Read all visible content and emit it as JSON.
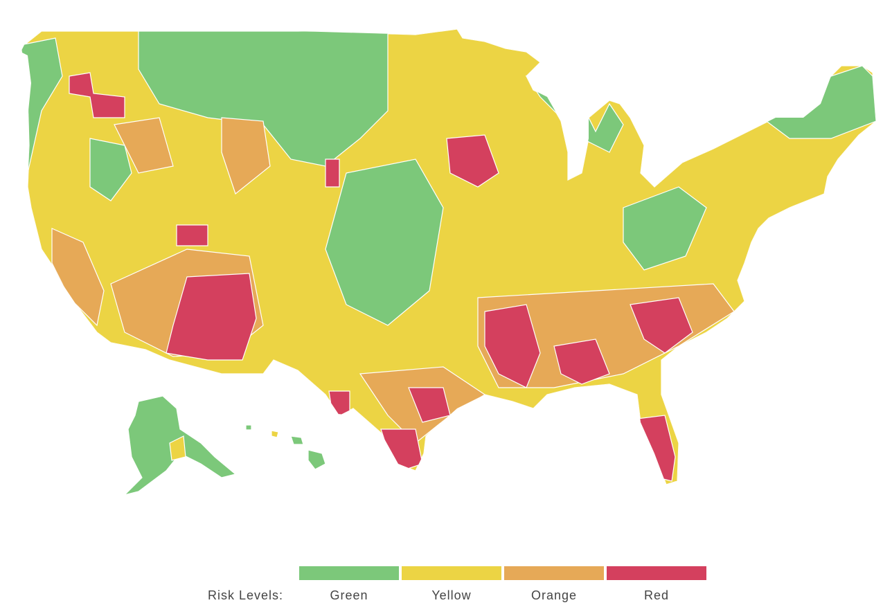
{
  "map": {
    "colors": {
      "green": "#7cc87a",
      "yellow": "#ecd444",
      "orange": "#e6a957",
      "red": "#d4405e",
      "border": "#ffffff"
    },
    "regions": {
      "contiguous_us": "yellow",
      "alaska": "green",
      "hawaii": "green"
    }
  },
  "legend": {
    "title": "Risk Levels:",
    "items": [
      {
        "key": "green",
        "label": "Green",
        "color": "#7cc87a"
      },
      {
        "key": "yellow",
        "label": "Yellow",
        "color": "#ecd444"
      },
      {
        "key": "orange",
        "label": "Orange",
        "color": "#e6a957"
      },
      {
        "key": "red",
        "label": "Red",
        "color": "#d4405e"
      }
    ]
  }
}
